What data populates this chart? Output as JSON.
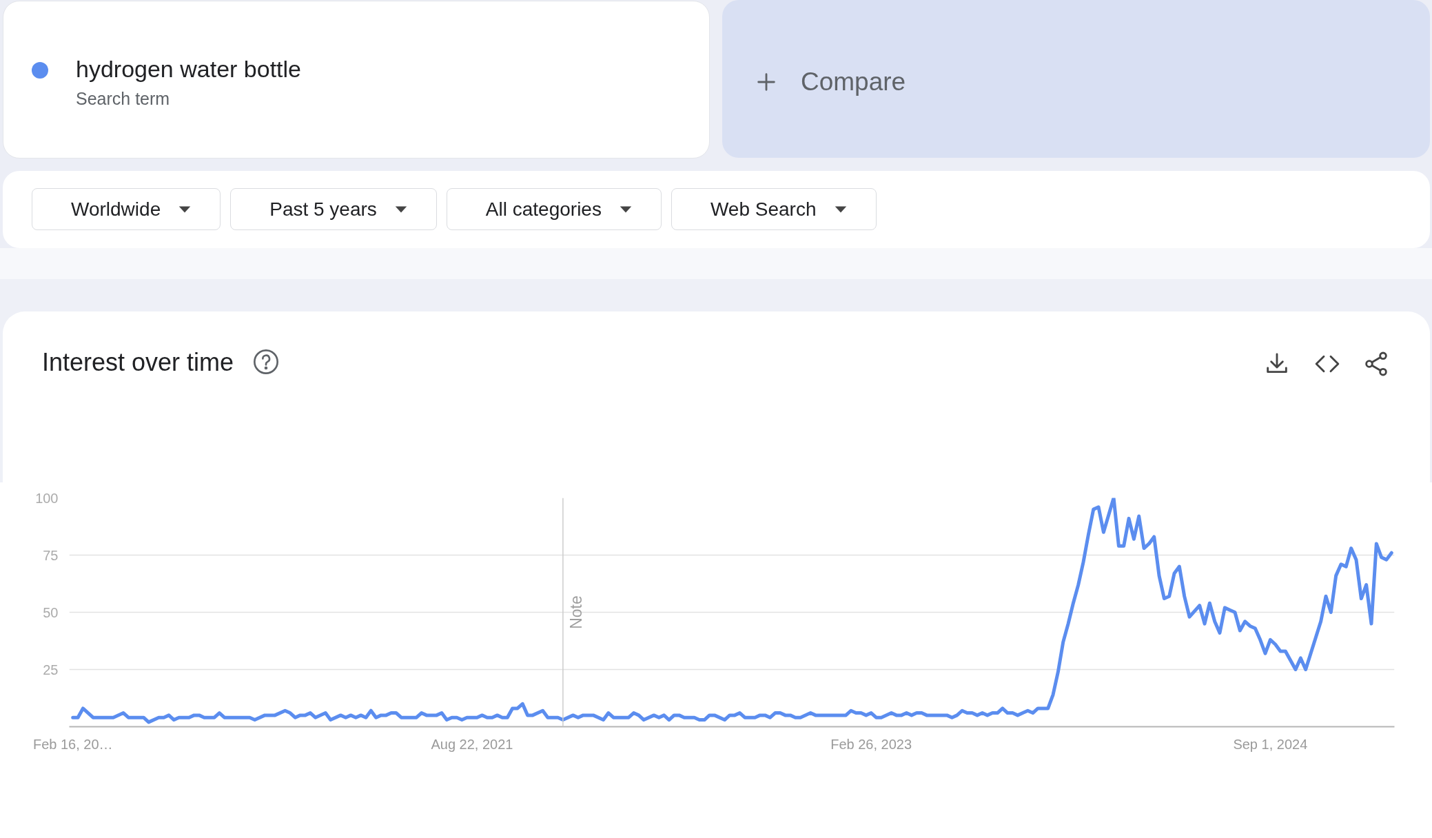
{
  "chart_data": {
    "type": "line",
    "title": "Interest over time",
    "annotations": [
      "Search term",
      "Compare",
      "Worldwide",
      "Past 5 years",
      "All categories",
      "Web Search"
    ],
    "x": [
      "2020-02-16",
      "2020-02-23",
      "2020-03-01",
      "2020-03-15",
      "2020-04-12",
      "2020-04-26",
      "2020-05-03",
      "2020-05-24",
      "2020-05-31",
      "2020-06-14",
      "2020-06-21",
      "2020-06-28",
      "2020-07-05",
      "2020-07-12",
      "2020-07-26",
      "2020-08-02",
      "2020-08-09",
      "2020-08-16",
      "2020-08-30",
      "2020-09-06",
      "2020-09-13",
      "2020-10-18",
      "2020-10-25",
      "2020-11-08",
      "2020-11-22",
      "2020-12-06",
      "2020-12-13",
      "2020-12-20",
      "2020-12-27",
      "2021-01-03",
      "2021-01-10",
      "2021-01-17",
      "2021-01-31",
      "2021-02-07",
      "2021-02-21",
      "2021-02-28",
      "2021-03-07",
      "2021-03-14",
      "2021-03-21",
      "2021-03-28",
      "2021-04-04",
      "2021-04-11",
      "2021-04-18",
      "2021-04-25",
      "2021-05-02",
      "2021-05-09",
      "2021-05-16",
      "2021-06-06",
      "2021-06-13",
      "2021-06-20",
      "2021-07-04",
      "2021-07-11",
      "2021-07-18",
      "2021-07-25",
      "2021-08-01",
      "2021-08-08",
      "2021-08-15",
      "2021-08-29",
      "2021-09-05",
      "2021-09-12",
      "2021-09-19",
      "2021-09-26",
      "2021-10-03",
      "2021-10-10",
      "2021-10-17",
      "2021-10-24",
      "2021-10-31",
      "2021-11-07",
      "2021-11-14",
      "2021-11-28",
      "2021-12-05",
      "2021-12-19",
      "2021-12-26",
      "2022-01-09",
      "2022-01-16",
      "2022-01-23",
      "2022-02-06",
      "2022-02-20",
      "2022-02-27",
      "2022-03-06",
      "2022-03-27",
      "2022-04-03",
      "2022-04-10",
      "2022-04-17",
      "2022-05-01",
      "2022-05-08",
      "2022-05-15",
      "2022-05-22",
      "2022-05-29",
      "2022-06-05",
      "2022-06-12",
      "2022-06-26",
      "2022-07-03",
      "2022-07-10",
      "2022-07-17",
      "2022-07-24",
      "2022-08-07",
      "2022-08-14",
      "2022-08-21",
      "2022-08-28",
      "2022-09-04",
      "2022-09-18",
      "2022-09-25",
      "2022-10-02",
      "2022-10-09",
      "2022-10-16",
      "2022-10-23",
      "2022-10-30",
      "2022-11-06",
      "2022-11-13",
      "2022-11-20",
      "2022-12-04",
      "2022-12-11",
      "2023-01-22",
      "2023-01-29",
      "2023-02-05",
      "2023-02-12",
      "2023-02-19",
      "2023-02-26",
      "2023-03-05",
      "2023-03-12",
      "2023-03-26",
      "2023-04-02",
      "2023-04-09",
      "2023-04-16",
      "2023-04-23",
      "2023-04-30",
      "2023-05-07",
      "2023-05-14",
      "2023-06-11",
      "2023-06-18",
      "2023-06-25",
      "2023-07-02",
      "2023-07-09",
      "2023-07-16",
      "2023-07-23",
      "2023-07-30",
      "2023-08-06",
      "2023-08-13",
      "2023-08-20",
      "2023-08-27",
      "2023-09-03",
      "2023-09-10",
      "2023-09-17",
      "2023-09-24",
      "2023-10-01",
      "2023-10-08",
      "2023-10-15",
      "2023-10-22",
      "2023-10-29",
      "2023-11-05",
      "2023-11-12",
      "2023-11-19",
      "2023-11-26",
      "2023-12-03",
      "2023-12-10",
      "2023-12-17",
      "2023-12-24",
      "2023-12-31",
      "2024-01-07",
      "2024-01-14",
      "2024-01-28",
      "2024-02-04",
      "2024-02-11",
      "2024-02-18",
      "2024-02-25",
      "2024-03-03",
      "2024-03-10",
      "2024-03-17",
      "2024-03-24",
      "2024-03-31",
      "2024-04-07",
      "2024-04-14",
      "2024-04-21",
      "2024-04-28",
      "2024-05-05",
      "2024-05-12",
      "2024-05-26",
      "2024-06-02",
      "2024-06-09",
      "2024-06-16",
      "2024-06-23",
      "2024-06-30",
      "2024-07-07",
      "2024-07-14",
      "2024-07-21",
      "2024-07-28",
      "2024-08-04",
      "2024-08-11",
      "2024-08-18",
      "2024-08-25",
      "2024-09-01",
      "2024-09-08",
      "2024-09-15",
      "2024-09-22",
      "2024-09-29",
      "2024-10-06",
      "2024-10-13",
      "2024-10-20",
      "2024-10-27",
      "2024-11-03",
      "2024-11-10",
      "2024-11-17",
      "2024-11-24",
      "2024-12-01",
      "2024-12-08",
      "2024-12-15",
      "2024-12-22",
      "2024-12-29",
      "2025-01-05",
      "2025-01-12",
      "2025-01-19",
      "2025-01-26",
      "2025-02-02",
      "2025-02-09",
      "2025-02-16"
    ],
    "series": [
      {
        "name": "hydrogen water bottle",
        "color": "#5b8def",
        "values": [
          4,
          4,
          8,
          4,
          4,
          6,
          4,
          4,
          2,
          4,
          4,
          5,
          3,
          4,
          4,
          5,
          5,
          4,
          4,
          6,
          4,
          4,
          3,
          5,
          5,
          7,
          6,
          4,
          5,
          5,
          6,
          4,
          6,
          3,
          5,
          4,
          5,
          4,
          5,
          4,
          7,
          4,
          5,
          5,
          6,
          6,
          4,
          4,
          6,
          5,
          5,
          6,
          3,
          4,
          4,
          3,
          4,
          4,
          5,
          4,
          4,
          5,
          4,
          4,
          8,
          8,
          10,
          5,
          5,
          7,
          4,
          4,
          3,
          5,
          4,
          5,
          5,
          3,
          6,
          4,
          4,
          6,
          5,
          3,
          5,
          4,
          5,
          3,
          5,
          5,
          4,
          4,
          3,
          3,
          5,
          5,
          3,
          5,
          5,
          6,
          4,
          4,
          5,
          5,
          4,
          6,
          6,
          5,
          5,
          4,
          4,
          6,
          5,
          5,
          7,
          6,
          6,
          5,
          6,
          4,
          4,
          6,
          5,
          5,
          6,
          5,
          6,
          6,
          5,
          5,
          4,
          5,
          7,
          6,
          6,
          5,
          6,
          5,
          6,
          6,
          8,
          6,
          6,
          5,
          6,
          7,
          6,
          8,
          8,
          8,
          14,
          24,
          37,
          45,
          54,
          62,
          72,
          84,
          95,
          96,
          85,
          100,
          79,
          79,
          91,
          82,
          92,
          78,
          80,
          83,
          66,
          56,
          57,
          67,
          70,
          57,
          48,
          53,
          45,
          54,
          46,
          41,
          52,
          51,
          50,
          42,
          46,
          44,
          43,
          38,
          32,
          38,
          36,
          33,
          33,
          29,
          25,
          30,
          25,
          32,
          39,
          46,
          57,
          50,
          66,
          71,
          70,
          78,
          73,
          56,
          62,
          45,
          80,
          74,
          73,
          76
        ]
      }
    ],
    "xlim": [
      "2020-02-11",
      "2025-02-20"
    ],
    "xticks": [
      {
        "value": "2020-02-16",
        "label": "Feb 16, 20…"
      },
      {
        "value": "2021-08-22",
        "label": "Aug 22, 2021"
      },
      {
        "value": "2023-02-26",
        "label": "Feb 26, 2023"
      },
      {
        "value": "2024-09-01",
        "label": "Sep 1, 2024"
      }
    ],
    "ylim": [
      0,
      100
    ],
    "yticks": [
      25,
      50,
      75,
      100
    ],
    "ref_lines": [
      {
        "axis": "x",
        "value": "2021-12-26",
        "label": "Note",
        "color": "#cccccc"
      }
    ],
    "grid": "y",
    "legend": "top left",
    "line_style": "solid"
  }
}
